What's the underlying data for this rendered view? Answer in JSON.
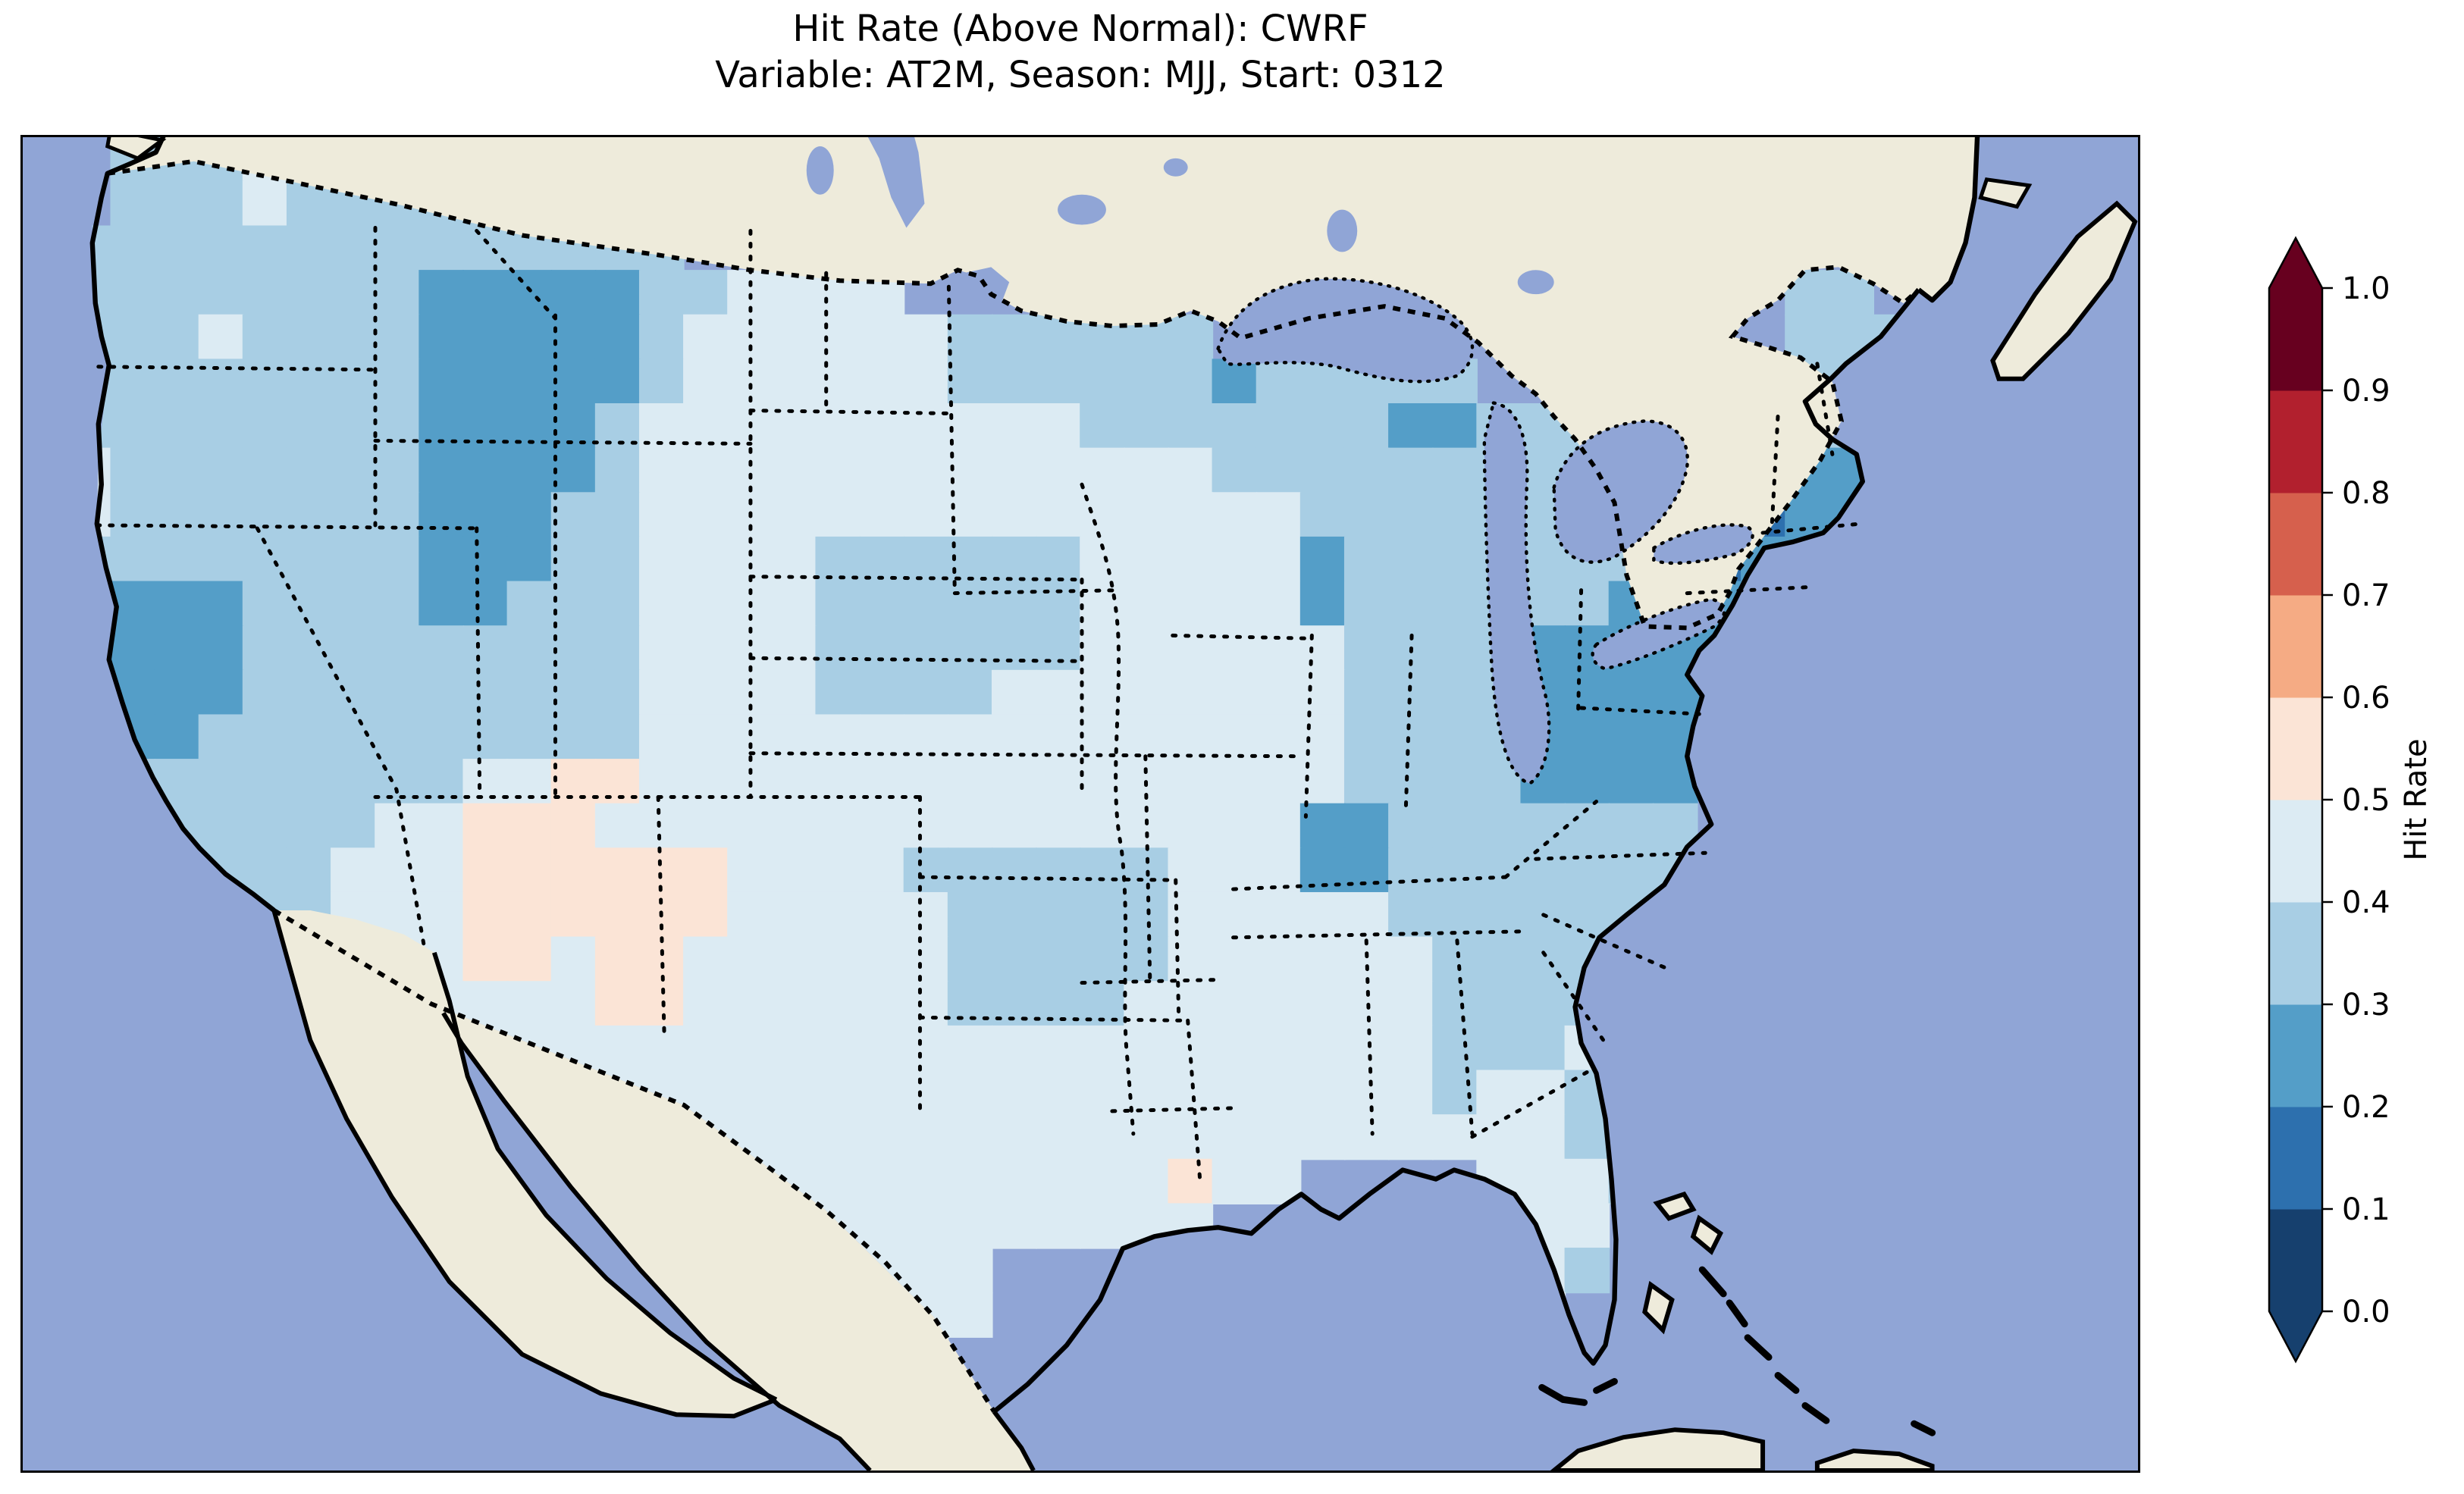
{
  "figure": {
    "title_line1": "Hit Rate (Above Normal): CWRF",
    "title_line2": "Variable: AT2M, Season: MJJ, Start: 0312"
  },
  "chart_data": {
    "type": "heatmap",
    "title": "Hit Rate (Above Normal): CWRF",
    "subtitle": "Variable: AT2M, Season: MJJ, Start: 0312",
    "model": "CWRF",
    "variable": "AT2M",
    "season": "MJJ",
    "start": "0312",
    "colorbar": {
      "label": "Hit Rate",
      "ticks": [
        "0.0",
        "0.1",
        "0.2",
        "0.3",
        "0.4",
        "0.5",
        "0.6",
        "0.7",
        "0.8",
        "0.9",
        "1.0"
      ],
      "extend": "both",
      "bins": [
        {
          "min": 0.0,
          "max": 0.1,
          "color": "#16406e"
        },
        {
          "min": 0.1,
          "max": 0.2,
          "color": "#2d70ae"
        },
        {
          "min": 0.2,
          "max": 0.3,
          "color": "#549ec8"
        },
        {
          "min": 0.3,
          "max": 0.4,
          "color": "#a8cee4"
        },
        {
          "min": 0.4,
          "max": 0.5,
          "color": "#dcebf3"
        },
        {
          "min": 0.5,
          "max": 0.6,
          "color": "#fbe4d6"
        },
        {
          "min": 0.6,
          "max": 0.7,
          "color": "#f5ab84"
        },
        {
          "min": 0.7,
          "max": 0.8,
          "color": "#d6604d"
        },
        {
          "min": 0.8,
          "max": 0.9,
          "color": "#b2202e"
        },
        {
          "min": 0.9,
          "max": 1.0,
          "color": "#67001f"
        }
      ]
    },
    "map": {
      "region": "Contiguous United States with southern Canada, northern Mexico, Gulf of Mexico and western Atlantic",
      "ocean_color": "#90a5d6",
      "land_color": "#eeebdb",
      "coastline_color": "#000000",
      "grid": {
        "note": "Hit-rate cells estimated from pixels; char = color-bin index (0=0.0-0.1 ... 9=0.9-1.0), dot = no data",
        "cols": 48,
        "rows": 30,
        "char_to_bin": {
          "0": "0.0-0.1",
          "1": "0.1-0.2",
          "2": "0.2-0.3",
          "3": "0.3-0.4",
          "4": "0.4-0.5",
          "5": "0.5-0.6",
          "6": "0.6-0.7",
          "7": "0.7-0.8",
          "8": "0.8-0.9",
          "9": "0.9-1.0",
          ".": "no data"
        },
        "cells": [
          "..333433",
          "..3334333333",
          ".33333333333333",
          ".3333333322222334444....................33",
          ".33343333222223444444333333.............333",
          ".33333333222223444444333333233333......3333",
          ".333333332222344444444443333333223333211233",
          ".43333333222234444444444444333333333321122",
          ".433333332223344444444444444433333333321222",
          ".33333333222334444333333444442333333321222",
          ".3222333322333444433333344444233333322222",
          ".3222333333333444433333344444433332222222",
          ".322233333333344443333444444443333222222",
          ".32233333333334444444444444444333322222",
          "..333333334455444444444444444433332222",
          "..333333445554444444444444444223333333",
          "..333334445555554444333333444223333333",
          "...33334445555554444433333444443333333",
          "......4444554554444443333344444433333",
          "........44444554444443333444444433333",
          "..........444444444444444444444433343",
          "............4444444444444444444434433",
          ".............444444444444444444444433",
          "..............444444444444544....4443",
          "...............444444444444.......44",
          "................444444............43",
          ".................44444............4",
          "..................444.............4",
          "...................44",
          ""
        ]
      }
    }
  }
}
